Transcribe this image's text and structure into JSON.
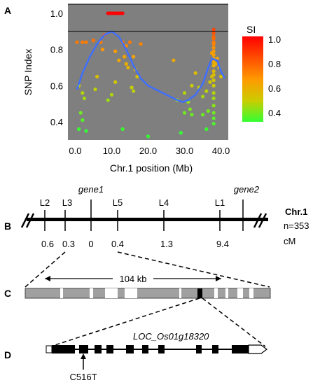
{
  "panels": {
    "a": "A",
    "b": "B",
    "c": "C",
    "d": "D"
  },
  "chart_data": {
    "type": "scatter",
    "xlabel": "Chr.1 position (Mb)",
    "ylabel": "SNP Index",
    "xlim": [
      -2,
      42
    ],
    "ylim": [
      0.3,
      1.05
    ],
    "xticks": [
      "0.0",
      "10.0",
      "20.0",
      "30.0",
      "40.0"
    ],
    "yticks": [
      "0.4",
      "0.6",
      "0.8",
      "1.0"
    ],
    "threshold": 0.9,
    "grid": false,
    "legend": {
      "title": "SI",
      "ticks": [
        "1.0",
        "0.8",
        "0.6",
        "0.4"
      ],
      "placement": "right"
    },
    "points": [
      [
        0.5,
        0.84
      ],
      [
        2,
        0.84
      ],
      [
        3,
        0.84
      ],
      [
        5,
        0.85
      ],
      [
        1,
        0.6
      ],
      [
        2,
        0.56
      ],
      [
        2.5,
        0.53
      ],
      [
        1.5,
        0.45
      ],
      [
        2,
        0.41
      ],
      [
        1,
        0.36
      ],
      [
        3,
        0.35
      ],
      [
        7,
        0.84
      ],
      [
        7.5,
        0.8
      ],
      [
        8,
        0.88
      ],
      [
        6,
        0.65
      ],
      [
        5.5,
        0.58
      ],
      [
        9,
        1.0
      ],
      [
        9.5,
        1.0
      ],
      [
        10,
        1.0
      ],
      [
        10.5,
        1.0
      ],
      [
        11,
        1.0
      ],
      [
        11.5,
        1.0
      ],
      [
        12,
        1.0
      ],
      [
        12.5,
        1.0
      ],
      [
        13,
        1.0
      ],
      [
        11,
        0.79
      ],
      [
        12,
        0.74
      ],
      [
        11,
        0.62
      ],
      [
        10,
        0.55
      ],
      [
        9,
        0.52
      ],
      [
        13,
        0.84
      ],
      [
        13.5,
        0.76
      ],
      [
        14,
        0.72
      ],
      [
        14.5,
        0.7
      ],
      [
        14,
        0.82
      ],
      [
        15,
        0.84
      ],
      [
        13,
        0.36
      ],
      [
        16,
        0.76
      ],
      [
        16.5,
        0.69
      ],
      [
        17,
        0.65
      ],
      [
        15.5,
        0.59
      ],
      [
        16,
        0.57
      ],
      [
        18,
        0.83
      ],
      [
        20,
        0.32
      ],
      [
        27,
        0.74
      ],
      [
        28,
        0.52
      ],
      [
        29,
        0.34
      ],
      [
        30,
        0.56
      ],
      [
        31,
        0.51
      ],
      [
        31.5,
        0.47
      ],
      [
        32,
        0.44
      ],
      [
        30,
        0.45
      ],
      [
        32,
        0.6
      ],
      [
        33,
        0.67
      ],
      [
        34,
        0.59
      ],
      [
        35,
        0.54
      ],
      [
        36,
        0.57
      ],
      [
        37,
        0.62
      ],
      [
        36,
        0.36
      ],
      [
        35,
        0.44
      ],
      [
        36.5,
        0.46
      ],
      [
        37.5,
        0.65
      ],
      [
        38,
        0.91
      ],
      [
        38,
        0.89
      ],
      [
        38,
        0.87
      ],
      [
        38,
        0.86
      ],
      [
        38,
        0.84
      ],
      [
        38,
        0.83
      ],
      [
        38,
        0.81
      ],
      [
        38,
        0.79
      ],
      [
        38,
        0.77
      ],
      [
        38,
        0.75
      ],
      [
        38,
        0.73
      ],
      [
        38,
        0.71
      ],
      [
        38,
        0.68
      ],
      [
        38,
        0.66
      ],
      [
        38,
        0.63
      ],
      [
        38,
        0.6
      ],
      [
        38,
        0.56
      ],
      [
        38,
        0.53
      ],
      [
        38,
        0.49
      ],
      [
        38,
        0.45
      ],
      [
        38,
        0.42
      ],
      [
        38,
        0.39
      ],
      [
        38.5,
        0.72
      ],
      [
        37.5,
        0.78
      ],
      [
        39,
        0.75
      ],
      [
        40,
        0.65
      ],
      [
        39.5,
        0.7
      ]
    ],
    "fit_line": [
      [
        0.5,
        0.58
      ],
      [
        2,
        0.67
      ],
      [
        4,
        0.76
      ],
      [
        6,
        0.83
      ],
      [
        8,
        0.88
      ],
      [
        10,
        0.9
      ],
      [
        12,
        0.87
      ],
      [
        14,
        0.8
      ],
      [
        16,
        0.71
      ],
      [
        18,
        0.64
      ],
      [
        20,
        0.6
      ],
      [
        22,
        0.58
      ],
      [
        24,
        0.56
      ],
      [
        26,
        0.54
      ],
      [
        28,
        0.52
      ],
      [
        29.5,
        0.51
      ],
      [
        31,
        0.52
      ],
      [
        33,
        0.55
      ],
      [
        35,
        0.61
      ],
      [
        36.5,
        0.7
      ],
      [
        37.5,
        0.75
      ],
      [
        39,
        0.74
      ],
      [
        40,
        0.68
      ],
      [
        41,
        0.64
      ]
    ]
  },
  "map": {
    "markers": [
      "L2",
      "L3",
      "L5",
      "L4",
      "L1"
    ],
    "genes": [
      "gene1",
      "gene2"
    ],
    "distances": [
      "0.6",
      "0.3",
      "0",
      "0.4",
      "1.3",
      "9.4"
    ],
    "chr_label": "Chr.1",
    "n_label": "n=353",
    "unit": "cM"
  },
  "region": {
    "size": "104 kb"
  },
  "gene_model": {
    "name": "LOC_Os01g18320",
    "mutation": "C516T"
  }
}
